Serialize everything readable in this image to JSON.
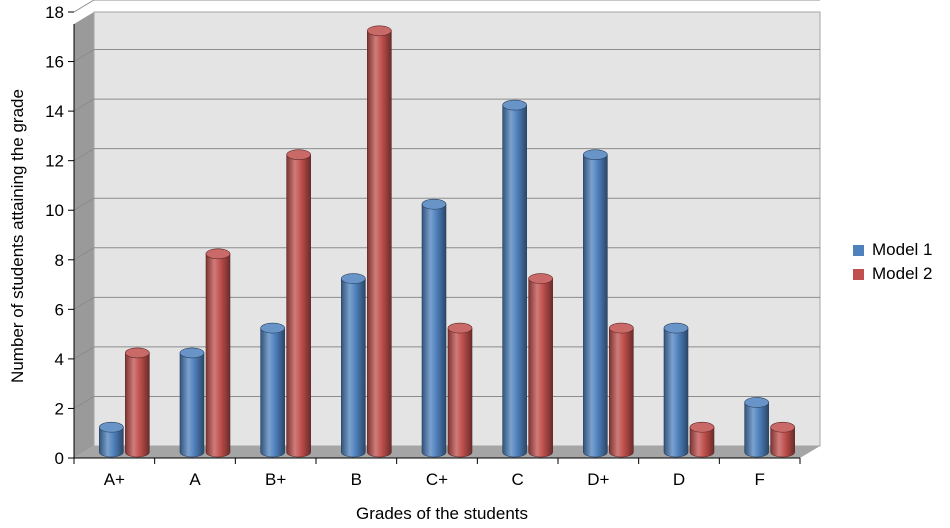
{
  "chart_data": {
    "type": "bar",
    "style": "3d-cylinder",
    "categories": [
      "A+",
      "A",
      "B+",
      "B",
      "C+",
      "C",
      "D+",
      "D",
      "F"
    ],
    "series": [
      {
        "name": "Model 1",
        "color": "#4f81bd",
        "values": [
          1,
          4,
          5,
          7,
          10,
          14,
          12,
          5,
          2
        ]
      },
      {
        "name": "Model 2",
        "color": "#c0504d",
        "values": [
          4,
          8,
          12,
          17,
          5,
          7,
          5,
          1,
          1
        ]
      }
    ],
    "xlabel": "Grades of the students",
    "ylabel": "Number of students attaining the grade",
    "ylim": [
      0,
      18
    ],
    "yticks": [
      "0",
      "2",
      "4",
      "6",
      "8",
      "10",
      "12",
      "14",
      "16",
      "18"
    ],
    "grid": true,
    "legend_position": "right"
  }
}
